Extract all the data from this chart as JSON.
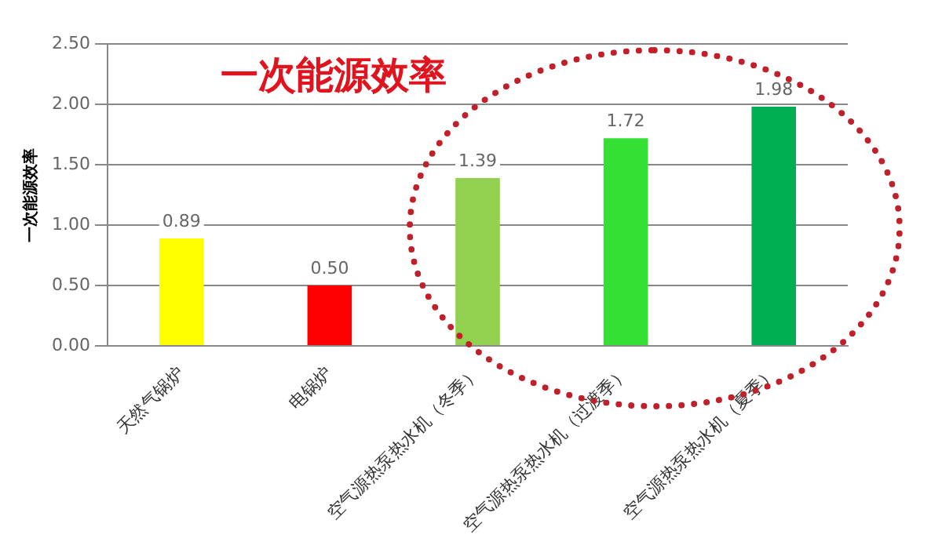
{
  "chart_data": {
    "type": "bar",
    "title": "一次能源效率",
    "ylabel": "一次能源效率",
    "categories": [
      "天然气锅炉",
      "电锅炉",
      "空气源热泵热水机（冬季）",
      "空气源热泵热水机（过渡季）",
      "空气源热泵热水机（夏季）"
    ],
    "values": [
      0.89,
      0.5,
      1.39,
      1.72,
      1.98
    ],
    "colors": [
      "#ffff00",
      "#ff0000",
      "#92d050",
      "#33e033",
      "#00b050"
    ],
    "ylim": [
      0,
      2.5
    ],
    "yticks": [
      {
        "value": 0,
        "label": "0.00"
      },
      {
        "value": 0.5,
        "label": "0.50"
      },
      {
        "value": 1,
        "label": "1.00"
      },
      {
        "value": 1.5,
        "label": "1.50"
      },
      {
        "value": 2,
        "label": "2.00"
      },
      {
        "value": 2.5,
        "label": "2.50"
      }
    ],
    "value_labels": [
      "0.89",
      "0.50",
      "1.39",
      "1.72",
      "1.98"
    ],
    "grid": "y",
    "legend": false
  }
}
